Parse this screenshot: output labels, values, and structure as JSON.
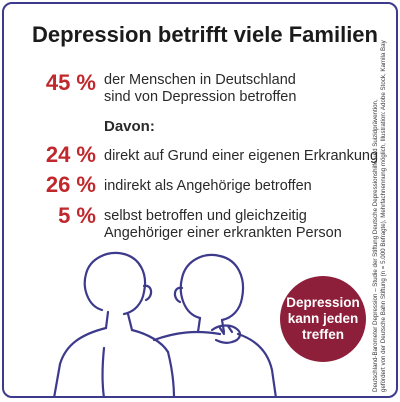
{
  "title": "Depression betrifft viele Familien",
  "stats": [
    {
      "percent": "45 %",
      "lines": [
        "der Menschen in Deutschland",
        "sind von Depression betroffen"
      ]
    },
    {
      "percent": "24 %",
      "lines": [
        "direkt auf Grund einer eigenen Erkrankung"
      ]
    },
    {
      "percent": "26 %",
      "lines": [
        "indirekt als Angehörige betroffen"
      ]
    },
    {
      "percent": "5 %",
      "lines": [
        "selbst betroffen und gleichzeitig",
        "Angehöriger einer erkrankten Person"
      ]
    }
  ],
  "davon_label": "Davon:",
  "badge_lines": [
    "Depression",
    "kann jeden",
    "treffen"
  ],
  "credit_lines": [
    "Deutschland-Barometer Depression – Studie der Stiftung Deutsche Depressionshilfe und Suizidprävention,",
    "gefördert von der Deutsche Bahn Stiftung (n = 5.000 Befragte), Mehrfachnennung möglich, Illustration: Adobe Stock, Kamila Bay"
  ],
  "colors": {
    "percent": "#c0282d",
    "badge": "#8e1f3a",
    "outline": "#3d3a8c",
    "text": "#2a2a2a"
  }
}
